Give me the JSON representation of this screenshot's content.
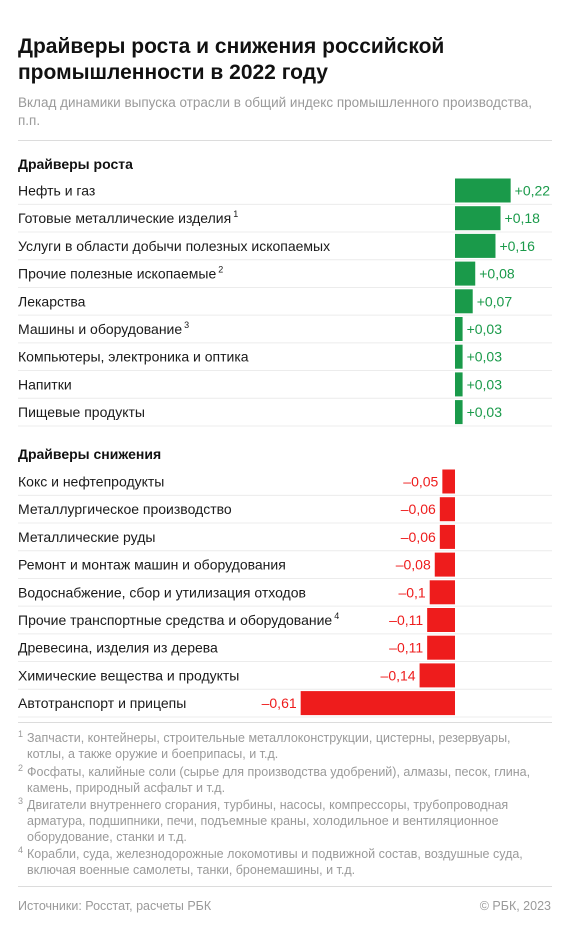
{
  "title": "Драйверы роста и снижения российской промышленности в 2022 году",
  "subtitle": "Вклад динамики выпуска отрасли в общий индекс промышленного производства, п.п.",
  "colors": {
    "growth": "#1a9a4a",
    "decline": "#ee1c1c",
    "text": "#1a1a1a",
    "muted": "#9a9a9a"
  },
  "chart_data": [
    {
      "type": "bar",
      "title": "Драйверы роста",
      "categories": [
        "Нефть и газ",
        "Готовые металлические изделия",
        "Услуги в области добычи полезных ископаемых",
        "Прочие полезные ископаемые",
        "Лекарства",
        "Машины и оборудование",
        "Компьютеры, электроника и оптика",
        "Напитки",
        "Пищевые продукты"
      ],
      "footnote_refs": [
        "",
        "1",
        "",
        "2",
        "",
        "3",
        "",
        "",
        ""
      ],
      "values": [
        0.22,
        0.18,
        0.16,
        0.08,
        0.07,
        0.03,
        0.03,
        0.03,
        0.03
      ],
      "value_labels": [
        "+0,22",
        "+0,18",
        "+0,16",
        "+0,08",
        "+0,07",
        "+0,03",
        "+0,03",
        "+0,03",
        "+0,03"
      ],
      "color": "#1a9a4a"
    },
    {
      "type": "bar",
      "title": "Драйверы снижения",
      "categories": [
        "Кокс и нефтепродукты",
        "Металлургическое производство",
        "Металлические руды",
        "Ремонт и монтаж машин и оборудования",
        "Водоснабжение, сбор и утилизация отходов",
        "Прочие транспортные средства и оборудование",
        "Древесина, изделия из дерева",
        "Химические вещества и продукты",
        "Автотранспорт и прицепы"
      ],
      "footnote_refs": [
        "",
        "",
        "",
        "",
        "",
        "4",
        "",
        "",
        ""
      ],
      "values": [
        -0.05,
        -0.06,
        -0.06,
        -0.08,
        -0.1,
        -0.11,
        -0.11,
        -0.14,
        -0.61
      ],
      "value_labels": [
        "–0,05",
        "–0,06",
        "–0,06",
        "–0,08",
        "–0,1",
        "–0,11",
        "–0,11",
        "–0,14",
        "–0,61"
      ],
      "color": "#ee1c1c"
    }
  ],
  "footnotes": [
    {
      "num": "1",
      "text": "Запчасти, контейнеры, строительные металлоконструкции, цистерны, резервуары, котлы, а также оружие и боеприпасы, и т.д."
    },
    {
      "num": "2",
      "text": "Фосфаты, калийные соли (сырье для производства удобрений), алмазы, песок, глина, камень, природный асфальт и т.д."
    },
    {
      "num": "3",
      "text": "Двигатели внутреннего сгорания, турбины, насосы, компрессоры, трубопроводная арматура, подшипники, печи, подъемные краны, холодильное и вентиляционное оборудование, станки и т.д."
    },
    {
      "num": "4",
      "text": "Корабли, суда, железнодорожные локомотивы и подвижной состав, воздушные суда, включая военные самолеты, танки, бронемашины, и т.д."
    }
  ],
  "source": "Источники: Росстат, расчеты РБК",
  "copyright": "© РБК, 2023"
}
